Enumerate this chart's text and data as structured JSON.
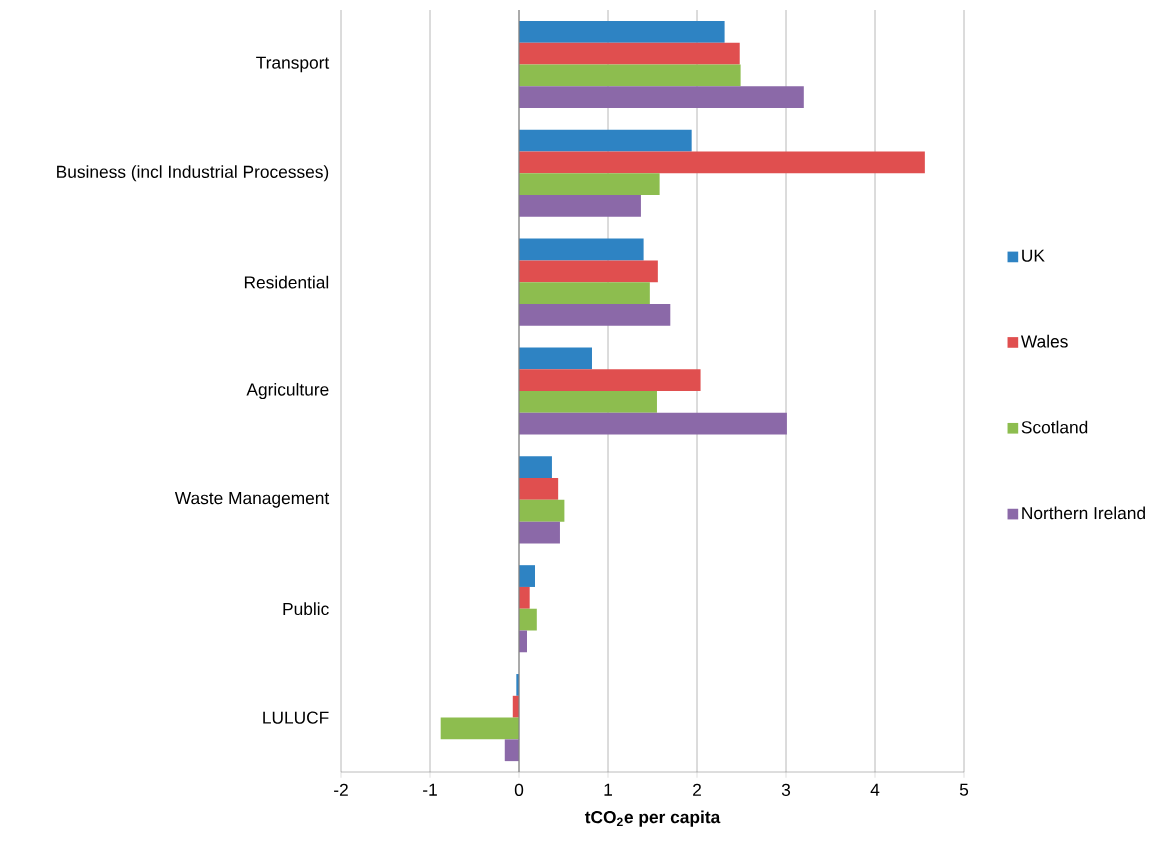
{
  "chart_data": {
    "type": "bar",
    "orientation": "horizontal",
    "xlabel": "tCO$_{2}$e per capita",
    "categories": [
      "Transport",
      "Business (incl Industrial Processes)",
      "Residential",
      "Agriculture",
      "Waste Management",
      "Public",
      "LULUCF"
    ],
    "series": [
      {
        "name": "UK",
        "color": "#2e83c3",
        "values": [
          2.31,
          1.94,
          1.4,
          0.82,
          0.37,
          0.18,
          -0.03
        ]
      },
      {
        "name": "Wales",
        "color": "#e04f4f",
        "values": [
          2.48,
          4.56,
          1.56,
          2.04,
          0.44,
          0.12,
          -0.07
        ]
      },
      {
        "name": "Scotland",
        "color": "#8dbd4f",
        "values": [
          2.49,
          1.58,
          1.47,
          1.55,
          0.51,
          0.2,
          -0.88
        ]
      },
      {
        "name": "Northern Ireland",
        "color": "#8b69a8",
        "values": [
          3.2,
          1.37,
          1.7,
          3.01,
          0.46,
          0.09,
          -0.16
        ]
      }
    ],
    "xlim": [
      -2,
      5
    ],
    "xticks": [
      -2,
      -1,
      0,
      1,
      2,
      3,
      4,
      5
    ],
    "grid": "x",
    "legend": "right"
  }
}
